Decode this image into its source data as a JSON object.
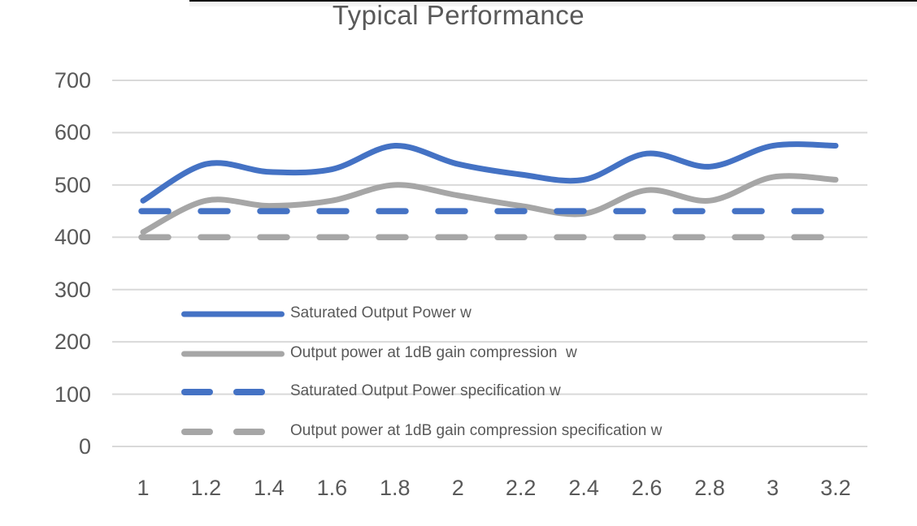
{
  "chart_data": {
    "type": "line",
    "title": "Typical Performance",
    "x": [
      1,
      1.2,
      1.4,
      1.6,
      1.8,
      2,
      2.2,
      2.4,
      2.6,
      2.8,
      3,
      3.2
    ],
    "x_tick_labels": [
      "1",
      "1.2",
      "1.4",
      "1.6",
      "1.8",
      "2",
      "2.2",
      "2.4",
      "2.6",
      "2.8",
      "3",
      "3.2"
    ],
    "y_ticks": [
      0,
      100,
      200,
      300,
      400,
      500,
      600,
      700
    ],
    "ylim": [
      0,
      700
    ],
    "xlabel": "",
    "ylabel": "",
    "grid": "horizontal-only",
    "legend_position": "inside-lower-left",
    "series": [
      {
        "name": "Saturated Output Power w",
        "style": "solid",
        "smooth": true,
        "color": "#4472C4",
        "values": [
          470,
          540,
          525,
          530,
          575,
          540,
          520,
          510,
          560,
          535,
          575,
          575
        ]
      },
      {
        "name": "Output power at 1dB gain compression  w",
        "style": "solid",
        "smooth": true,
        "color": "#A6A6A6",
        "values": [
          410,
          470,
          460,
          470,
          500,
          480,
          460,
          445,
          490,
          470,
          515,
          510
        ]
      },
      {
        "name": "Saturated Output Power specification w",
        "style": "dashed",
        "smooth": false,
        "color": "#4472C4",
        "values": [
          450,
          450,
          450,
          450,
          450,
          450,
          450,
          450,
          450,
          450,
          450,
          450
        ]
      },
      {
        "name": "Output power at 1dB gain compression specification w",
        "style": "dashed",
        "smooth": false,
        "color": "#A6A6A6",
        "values": [
          400,
          400,
          400,
          400,
          400,
          400,
          400,
          400,
          400,
          400,
          400,
          400
        ]
      }
    ]
  },
  "colors": {
    "gridline": "#D9D9D9",
    "axis_text": "#595959",
    "title_text": "#595959",
    "background": "#FFFFFF"
  }
}
